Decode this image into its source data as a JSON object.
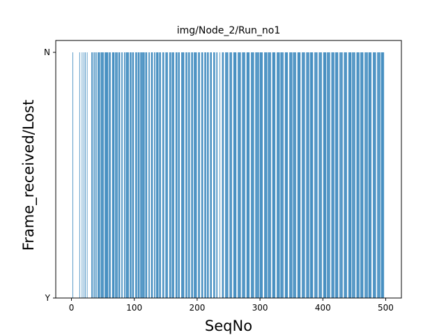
{
  "chart_data": {
    "type": "bar",
    "title": "img/Node_2/Run_no1",
    "xlabel": "SeqNo",
    "ylabel": "Frame_received/Lost",
    "xlim": [
      -25,
      525
    ],
    "x_ticks": [
      0,
      100,
      200,
      300,
      400,
      500
    ],
    "y_categories": [
      "Y",
      "N"
    ],
    "color": "#1f77b4",
    "grid": false,
    "value_encoding": "each bar is one SeqNo whose value is N (frame lost); SeqNos without a bar are Y (frame received)",
    "lost_seq_ranges": [
      [
        2,
        2
      ],
      [
        13,
        13
      ],
      [
        17,
        17
      ],
      [
        20,
        20
      ],
      [
        22,
        22
      ],
      [
        25,
        25
      ],
      [
        32,
        33
      ],
      [
        35,
        35
      ],
      [
        37,
        38
      ],
      [
        40,
        40
      ],
      [
        42,
        45
      ],
      [
        47,
        51
      ],
      [
        53,
        58
      ],
      [
        60,
        62
      ],
      [
        65,
        68
      ],
      [
        70,
        73
      ],
      [
        75,
        77
      ],
      [
        80,
        81
      ],
      [
        84,
        85
      ],
      [
        87,
        91
      ],
      [
        93,
        95
      ],
      [
        97,
        99
      ],
      [
        102,
        104
      ],
      [
        106,
        108
      ],
      [
        110,
        116
      ],
      [
        118,
        120
      ],
      [
        123,
        124
      ],
      [
        127,
        129
      ],
      [
        132,
        133
      ],
      [
        135,
        138
      ],
      [
        140,
        142
      ],
      [
        145,
        147
      ],
      [
        150,
        153
      ],
      [
        156,
        158
      ],
      [
        160,
        163
      ],
      [
        166,
        168
      ],
      [
        170,
        172
      ],
      [
        175,
        179
      ],
      [
        182,
        184
      ],
      [
        186,
        188
      ],
      [
        191,
        193
      ],
      [
        195,
        199
      ],
      [
        202,
        204
      ],
      [
        207,
        209
      ],
      [
        212,
        214
      ],
      [
        216,
        218
      ],
      [
        221,
        223
      ],
      [
        226,
        228
      ],
      [
        231,
        232
      ],
      [
        236,
        236
      ],
      [
        240,
        242
      ],
      [
        245,
        249
      ],
      [
        252,
        255
      ],
      [
        258,
        262
      ],
      [
        265,
        269
      ],
      [
        272,
        276
      ],
      [
        279,
        283
      ],
      [
        286,
        290
      ],
      [
        293,
        298
      ],
      [
        300,
        304
      ],
      [
        307,
        311
      ],
      [
        313,
        317
      ],
      [
        320,
        324
      ],
      [
        327,
        331
      ],
      [
        333,
        337
      ],
      [
        340,
        344
      ],
      [
        347,
        351
      ],
      [
        353,
        357
      ],
      [
        360,
        364
      ],
      [
        367,
        371
      ],
      [
        374,
        378
      ],
      [
        380,
        384
      ],
      [
        387,
        391
      ],
      [
        394,
        398
      ],
      [
        401,
        405
      ],
      [
        407,
        411
      ],
      [
        414,
        418
      ],
      [
        420,
        424
      ],
      [
        427,
        431
      ],
      [
        434,
        438
      ],
      [
        441,
        445
      ],
      [
        447,
        451
      ],
      [
        454,
        458
      ],
      [
        460,
        464
      ],
      [
        467,
        471
      ],
      [
        473,
        477
      ],
      [
        480,
        484
      ],
      [
        487,
        491
      ],
      [
        493,
        497
      ]
    ]
  }
}
